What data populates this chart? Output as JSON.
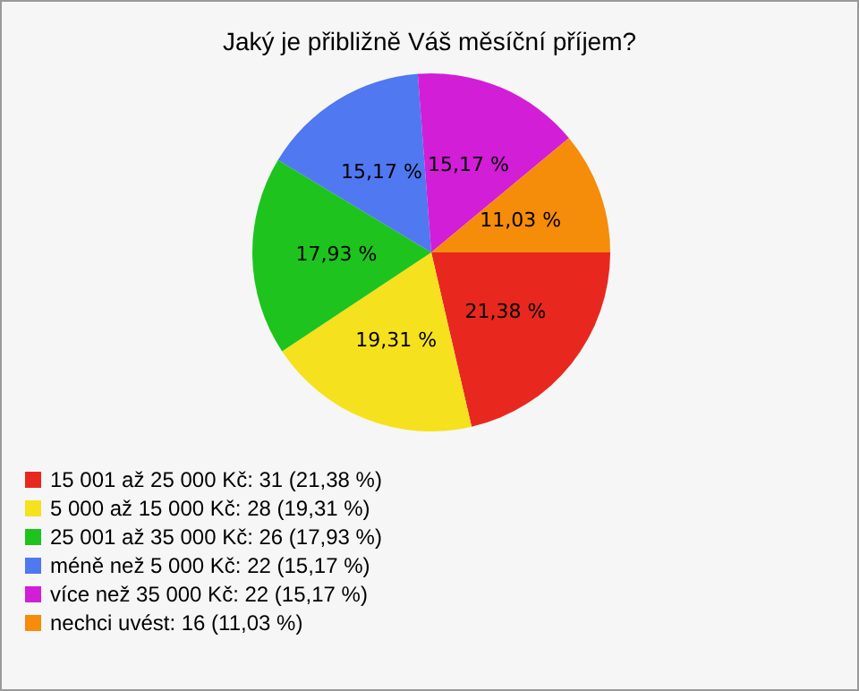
{
  "chart_data": {
    "type": "pie",
    "title": "Jaký je přibližně Váš měsíční příjem?",
    "categories": [
      "15 001 až 25 000 Kč: 31 (21,38 %)",
      "5 000 až 15 000 Kč: 28 (19,31 %)",
      "25 001 až 35 000 Kč: 26 (17,93 %)",
      "méně než 5 000 Kč: 22 (15,17 %)",
      "více než 35 000 Kč: 22 (15,17 %)",
      "nechci uvést: 16 (11,03 %)"
    ],
    "values": [
      21.38,
      19.31,
      17.93,
      15.17,
      15.17,
      11.03
    ],
    "value_labels": [
      "21,38 %",
      "19,31 %",
      "17,93 %",
      "15,17 %",
      "15,17 %",
      "11,03 %"
    ],
    "colors": [
      "#e8281e",
      "#f5e11e",
      "#1ec31e",
      "#5078f0",
      "#d21ed7",
      "#f58c0a"
    ],
    "legend": "bottom left"
  }
}
